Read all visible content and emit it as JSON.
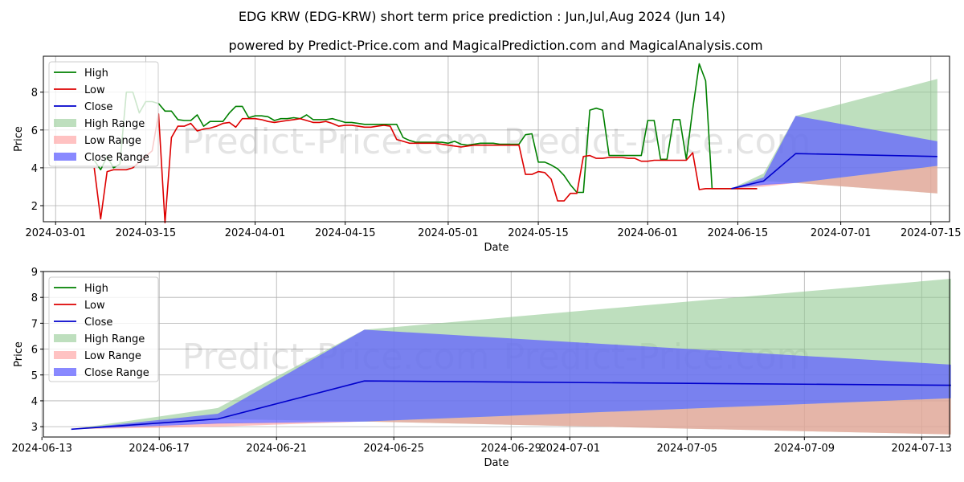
{
  "title": "EDG KRW (EDG-KRW) short term price prediction : Jun,Jul,Aug 2024 (Jun 14)",
  "subtitle": "powered by Predict-Price.com and MagicalPrediction.com and MagicalAnalysis.com",
  "watermark": "Predict-Price.com",
  "colors": {
    "high": "#008000",
    "low": "#dd0000",
    "close": "#0000cc",
    "high_range": "#93c993",
    "low_range": "#ff9a9a",
    "close_range": "#6161ff"
  },
  "chart_data": [
    {
      "type": "line",
      "name": "historical-and-forecast",
      "xlabel": "Date",
      "ylabel": "Price",
      "x_start": "2024-03-01",
      "x_end_day": 137,
      "xlim_days": [
        -1.9,
        138.9
      ],
      "ylim": [
        1.15,
        9.9
      ],
      "xticks": [
        {
          "day": 0,
          "label": "2024-03-01"
        },
        {
          "day": 14,
          "label": "2024-03-15"
        },
        {
          "day": 31,
          "label": "2024-04-01"
        },
        {
          "day": 45,
          "label": "2024-04-15"
        },
        {
          "day": 61,
          "label": "2024-05-01"
        },
        {
          "day": 75,
          "label": "2024-05-15"
        },
        {
          "day": 92,
          "label": "2024-06-01"
        },
        {
          "day": 106,
          "label": "2024-06-15"
        },
        {
          "day": 122,
          "label": "2024-07-01"
        },
        {
          "day": 136,
          "label": "2024-07-15"
        }
      ],
      "yticks": [
        2,
        4,
        6,
        8
      ],
      "series": [
        {
          "name": "High",
          "day_start": 6,
          "values": [
            4.4,
            3.9,
            4.6,
            4.0,
            4.2,
            8.0,
            8.0,
            6.9,
            7.5,
            7.5,
            7.4,
            7.0,
            7.0,
            6.55,
            6.5,
            6.5,
            6.8,
            6.2,
            6.45,
            6.45,
            6.45,
            6.9,
            7.25,
            7.25,
            6.65,
            6.75,
            6.75,
            6.7,
            6.5,
            6.6,
            6.6,
            6.65,
            6.6,
            6.8,
            6.55,
            6.55,
            6.55,
            6.6,
            6.5,
            6.4,
            6.4,
            6.35,
            6.3,
            6.3,
            6.3,
            6.3,
            6.3,
            6.3,
            5.6,
            5.45,
            5.35,
            5.35,
            5.35,
            5.35,
            5.35,
            5.3,
            5.4,
            5.25,
            5.2,
            5.25,
            5.3,
            5.3,
            5.3,
            5.25,
            5.25,
            5.25,
            5.25,
            5.75,
            5.8,
            4.3,
            4.3,
            4.15,
            3.95,
            3.6,
            3.1,
            2.7,
            2.7,
            7.05,
            7.15,
            7.05,
            4.65,
            4.65,
            4.65,
            4.65,
            4.65,
            4.65,
            6.5,
            6.5,
            4.45,
            4.45,
            6.55,
            6.55,
            4.45,
            7.1,
            9.5,
            8.6,
            2.9,
            2.9,
            2.9,
            2.9,
            2.9,
            2.9,
            2.9,
            2.9
          ]
        },
        {
          "name": "Low",
          "day_start": 6,
          "values": [
            4.0,
            1.3,
            3.8,
            3.9,
            3.9,
            3.9,
            4.0,
            4.3,
            4.6,
            4.9,
            6.85,
            1.1,
            5.6,
            6.2,
            6.2,
            6.35,
            5.95,
            6.05,
            6.1,
            6.2,
            6.35,
            6.4,
            6.15,
            6.6,
            6.6,
            6.6,
            6.55,
            6.45,
            6.4,
            6.45,
            6.5,
            6.55,
            6.6,
            6.5,
            6.4,
            6.4,
            6.45,
            6.35,
            6.2,
            6.25,
            6.25,
            6.2,
            6.15,
            6.15,
            6.2,
            6.25,
            6.2,
            5.5,
            5.4,
            5.3,
            5.3,
            5.3,
            5.3,
            5.3,
            5.25,
            5.2,
            5.15,
            5.1,
            5.15,
            5.2,
            5.2,
            5.2,
            5.2,
            5.2,
            5.2,
            5.2,
            5.2,
            3.65,
            3.65,
            3.8,
            3.75,
            3.4,
            2.25,
            2.25,
            2.65,
            2.65,
            4.6,
            4.65,
            4.5,
            4.5,
            4.55,
            4.55,
            4.55,
            4.5,
            4.5,
            4.35,
            4.35,
            4.4,
            4.4,
            4.4,
            4.4,
            4.4,
            4.4,
            4.8,
            2.85,
            2.9,
            2.9,
            2.9,
            2.9,
            2.9,
            2.9,
            2.9,
            2.9,
            2.9
          ]
        },
        {
          "name": "Close",
          "points": [
            [
              105,
              2.9
            ],
            [
              110,
              3.3
            ],
            [
              115,
              4.75
            ],
            [
              137,
              4.6
            ]
          ]
        }
      ],
      "ranges": [
        {
          "name": "High Range",
          "x": [
            105,
            110,
            115,
            137
          ],
          "lower": [
            2.9,
            3.3,
            3.2,
            2.65
          ],
          "upper": [
            2.9,
            3.7,
            6.75,
            8.7
          ]
        },
        {
          "name": "Low Range",
          "x": [
            105,
            110,
            115,
            137
          ],
          "lower": [
            2.9,
            3.0,
            3.2,
            2.65
          ],
          "upper": [
            2.9,
            3.15,
            3.2,
            4.1
          ]
        },
        {
          "name": "Close Range",
          "x": [
            105,
            110,
            115,
            137
          ],
          "lower": [
            2.9,
            3.1,
            3.2,
            4.1
          ],
          "upper": [
            2.9,
            3.5,
            6.75,
            5.4
          ]
        }
      ],
      "legend": [
        "High",
        "Low",
        "Close",
        "High Range",
        "Low Range",
        "Close Range"
      ],
      "legend_location": "upper-left",
      "grid": true
    },
    {
      "type": "line",
      "name": "forecast-zoom",
      "xlabel": "Date",
      "ylabel": "Price",
      "x_start": "2024-06-13",
      "xlim_days": [
        0.05,
        30.95
      ],
      "ylim": [
        2.6,
        9.0
      ],
      "xticks": [
        {
          "day": 0,
          "label": "2024-06-13"
        },
        {
          "day": 4,
          "label": "2024-06-17"
        },
        {
          "day": 8,
          "label": "2024-06-21"
        },
        {
          "day": 12,
          "label": "2024-06-25"
        },
        {
          "day": 16,
          "label": "2024-06-29"
        },
        {
          "day": 18,
          "label": "2024-07-01"
        },
        {
          "day": 22,
          "label": "2024-07-05"
        },
        {
          "day": 26,
          "label": "2024-07-09"
        },
        {
          "day": 30,
          "label": "2024-07-13"
        }
      ],
      "yticks": [
        3,
        4,
        5,
        6,
        7,
        8,
        9
      ],
      "series": [
        {
          "name": "Close",
          "points": [
            [
              1,
              2.9
            ],
            [
              6,
              3.3
            ],
            [
              11,
              4.77
            ],
            [
              31,
              4.6
            ]
          ]
        }
      ],
      "ranges": [
        {
          "name": "High Range",
          "x": [
            1,
            6,
            11,
            31
          ],
          "lower": [
            2.9,
            3.3,
            3.2,
            2.7
          ],
          "upper": [
            2.9,
            3.72,
            6.75,
            8.72
          ]
        },
        {
          "name": "Low Range",
          "x": [
            1,
            6,
            11,
            31
          ],
          "lower": [
            2.9,
            3.0,
            3.2,
            2.7
          ],
          "upper": [
            2.9,
            3.15,
            3.2,
            4.1
          ]
        },
        {
          "name": "Close Range",
          "x": [
            1,
            6,
            11,
            31
          ],
          "lower": [
            2.9,
            3.12,
            3.2,
            4.1
          ],
          "upper": [
            2.9,
            3.5,
            6.75,
            5.4
          ]
        }
      ],
      "legend": [
        "High",
        "Low",
        "Close",
        "High Range",
        "Low Range",
        "Close Range"
      ],
      "legend_location": "upper-left",
      "grid": true
    }
  ]
}
